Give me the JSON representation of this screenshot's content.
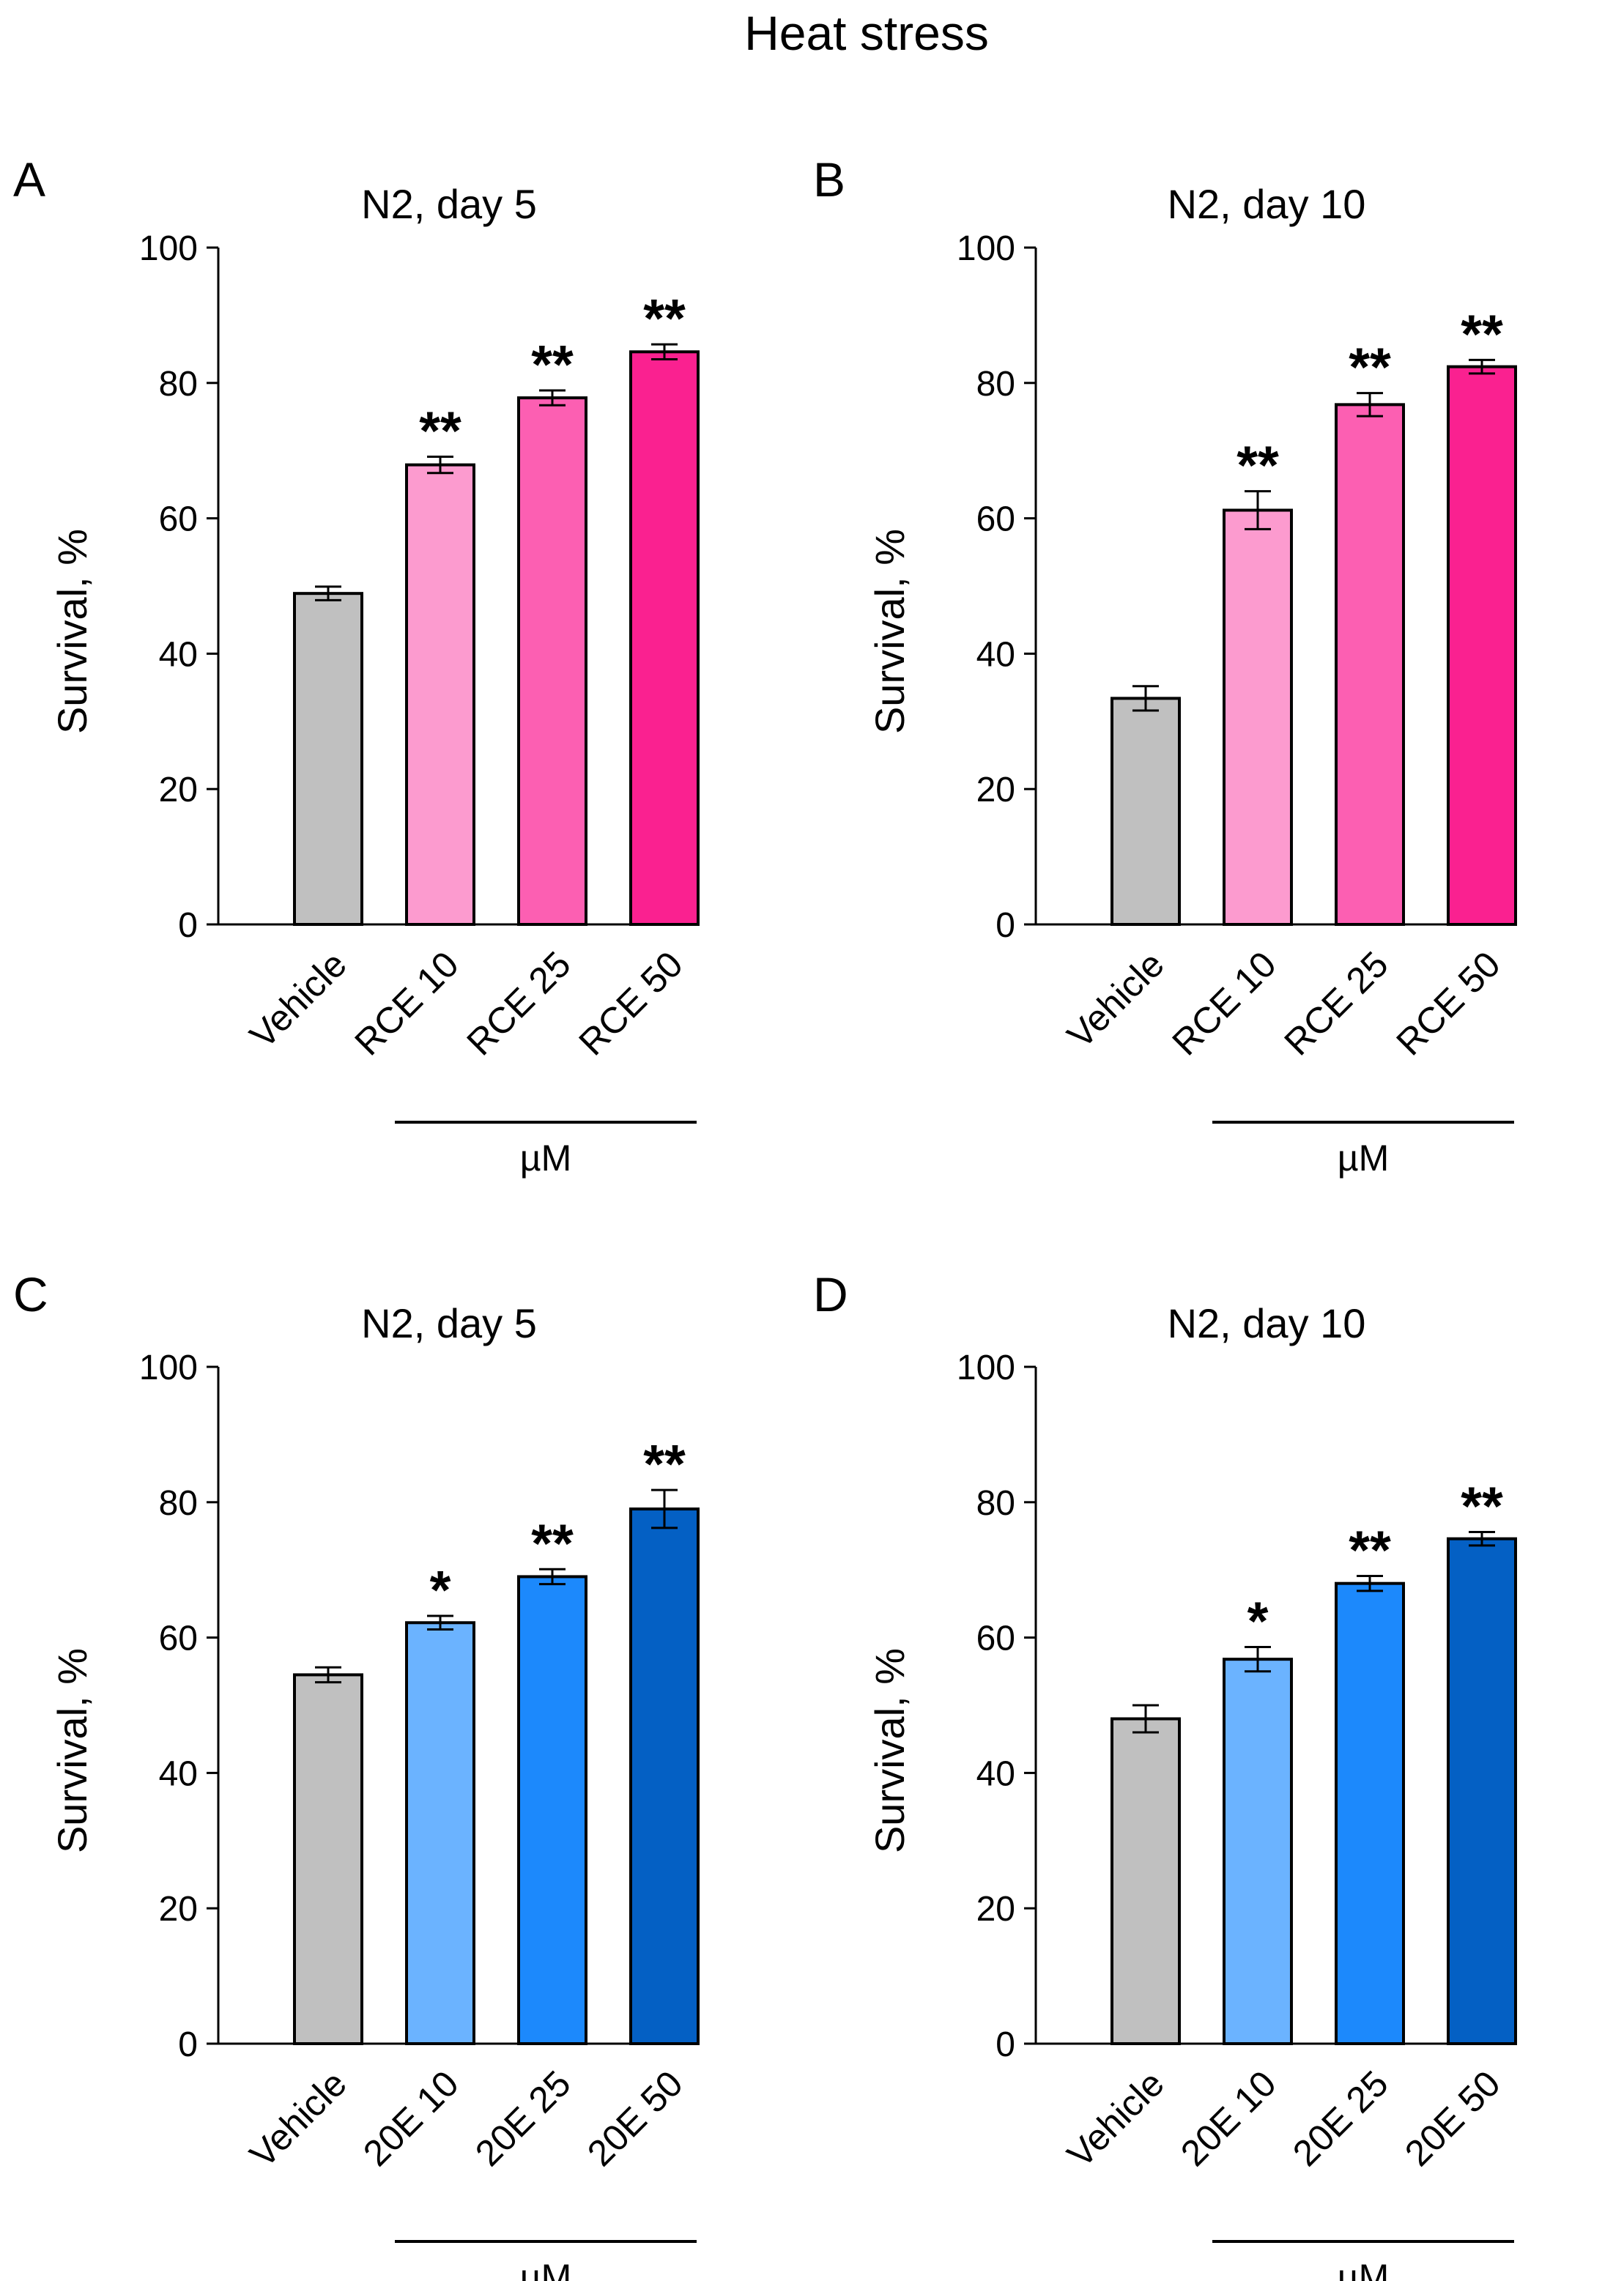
{
  "figure_title": "Heat stress",
  "chart_data": [
    {
      "panel": "A",
      "type": "bar",
      "title": "N2, day 5",
      "ylabel": "Survival, %",
      "xlabel": "µM",
      "ylim": [
        0,
        100
      ],
      "yticks": [
        0,
        20,
        40,
        60,
        80,
        100
      ],
      "categories": [
        "Vehicle",
        "RCE 10",
        "RCE 25",
        "RCE 50"
      ],
      "values": [
        48.9,
        67.9,
        77.8,
        84.6
      ],
      "errors": [
        1.0,
        1.2,
        1.1,
        1.1
      ],
      "significance": [
        "",
        "**",
        "**",
        "**"
      ],
      "colors": [
        "#c0c0c0",
        "#fc9bcf",
        "#fc5fb2",
        "#fa2190"
      ],
      "underline_from": 1
    },
    {
      "panel": "B",
      "type": "bar",
      "title": "N2, day 10",
      "ylabel": "Survival, %",
      "xlabel": "µM",
      "ylim": [
        0,
        100
      ],
      "yticks": [
        0,
        20,
        40,
        60,
        80,
        100
      ],
      "categories": [
        "Vehicle",
        "RCE 10",
        "RCE 25",
        "RCE 50"
      ],
      "values": [
        33.4,
        61.2,
        76.8,
        82.4
      ],
      "errors": [
        1.8,
        2.8,
        1.7,
        1.0
      ],
      "significance": [
        "",
        "**",
        "**",
        "**"
      ],
      "colors": [
        "#c0c0c0",
        "#fc9bcf",
        "#fc5fb2",
        "#fa2190"
      ],
      "underline_from": 1
    },
    {
      "panel": "C",
      "type": "bar",
      "title": "N2, day 5",
      "ylabel": "Survival, %",
      "xlabel": "µM",
      "ylim": [
        0,
        100
      ],
      "yticks": [
        0,
        20,
        40,
        60,
        80,
        100
      ],
      "categories": [
        "Vehicle",
        "20E 10",
        "20E 25",
        "20E 50"
      ],
      "values": [
        54.5,
        62.2,
        69.0,
        79.0
      ],
      "errors": [
        1.1,
        1.0,
        1.1,
        2.8
      ],
      "significance": [
        "",
        "*",
        "**",
        "**"
      ],
      "colors": [
        "#c0c0c0",
        "#6bb3ff",
        "#1c89fc",
        "#0460c4"
      ],
      "underline_from": 1
    },
    {
      "panel": "D",
      "type": "bar",
      "title": "N2, day 10",
      "ylabel": "Survival, %",
      "xlabel": "µM",
      "ylim": [
        0,
        100
      ],
      "yticks": [
        0,
        20,
        40,
        60,
        80,
        100
      ],
      "categories": [
        "Vehicle",
        "20E 10",
        "20E 25",
        "20E 50"
      ],
      "values": [
        48.0,
        56.8,
        68.0,
        74.6
      ],
      "errors": [
        2.0,
        1.8,
        1.1,
        1.0
      ],
      "significance": [
        "",
        "*",
        "**",
        "**"
      ],
      "colors": [
        "#c0c0c0",
        "#6bb3ff",
        "#1c89fc",
        "#0460c4"
      ],
      "underline_from": 1
    }
  ]
}
